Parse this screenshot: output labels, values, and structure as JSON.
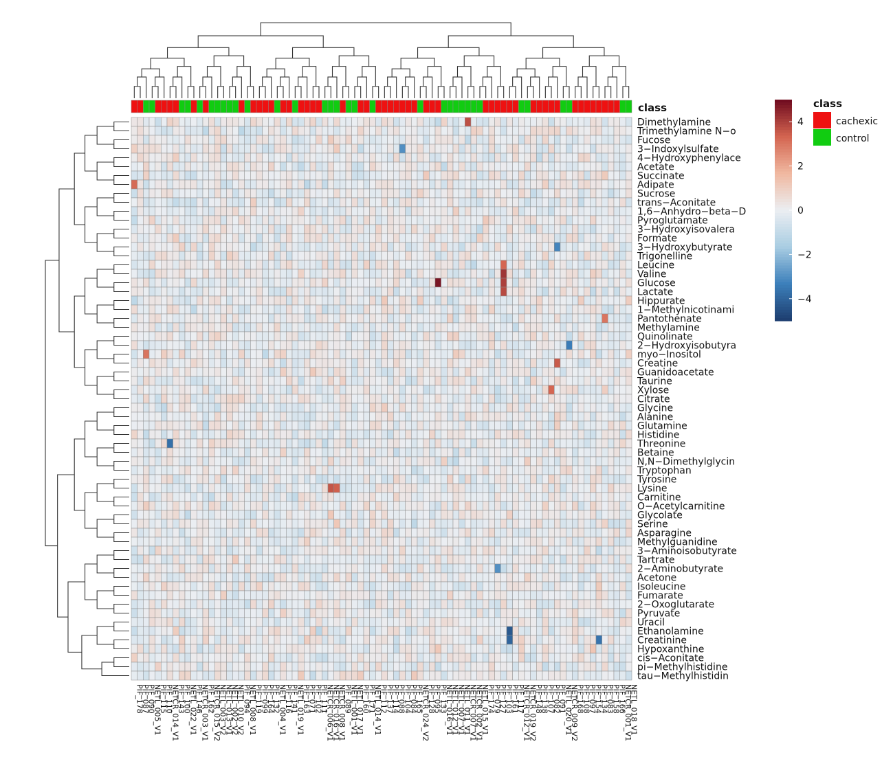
{
  "chart_data": {
    "type": "heatmap",
    "title": "",
    "xlabel": "",
    "ylabel": "",
    "annotation_title": "class",
    "annotation_legend": [
      {
        "label": "cachexic",
        "color": "#ee1111"
      },
      {
        "label": "control",
        "color": "#11cc11"
      }
    ],
    "column_class": [
      "cachexic",
      "cachexic",
      "control",
      "control",
      "cachexic",
      "cachexic",
      "cachexic",
      "cachexic",
      "control",
      "control",
      "cachexic",
      "control",
      "cachexic",
      "control",
      "control",
      "control",
      "control",
      "control",
      "cachexic",
      "control",
      "cachexic",
      "cachexic",
      "cachexic",
      "cachexic",
      "control",
      "cachexic",
      "cachexic",
      "control",
      "cachexic",
      "cachexic",
      "cachexic",
      "cachexic",
      "control",
      "control",
      "control",
      "cachexic",
      "control",
      "control",
      "cachexic",
      "cachexic",
      "control",
      "cachexic",
      "cachexic",
      "cachexic",
      "cachexic",
      "cachexic",
      "cachexic",
      "cachexic",
      "control",
      "cachexic",
      "cachexic",
      "cachexic",
      "control",
      "control",
      "control",
      "control",
      "control",
      "control",
      "control",
      "cachexic",
      "cachexic",
      "cachexic",
      "cachexic",
      "cachexic",
      "cachexic",
      "control",
      "control",
      "cachexic",
      "cachexic",
      "cachexic",
      "cachexic",
      "cachexic",
      "control",
      "control",
      "cachexic",
      "cachexic",
      "cachexic",
      "cachexic",
      "cachexic",
      "cachexic",
      "cachexic",
      "cachexic",
      "control",
      "control"
    ],
    "color_scale": {
      "min": -5,
      "max": 5,
      "ticks": [
        4,
        2,
        0,
        -2,
        -4
      ],
      "colors": [
        "#1d3d6e",
        "#3c7fba",
        "#a9cde2",
        "#ebeef2",
        "#f0b8a0",
        "#d36450",
        "#6e0a1e"
      ]
    },
    "rows": [
      "Dimethylamine",
      "Trimethylamine N−o",
      "Fucose",
      "3−Indoxylsulfate",
      "4−Hydroxyphenylace",
      "Acetate",
      "Succinate",
      "Adipate",
      "Sucrose",
      "trans−Aconitate",
      "1,6−Anhydro−beta−D",
      "Pyroglutamate",
      "3−Hydroxyisovalera",
      "Formate",
      "3−Hydroxybutyrate",
      "Trigonelline",
      "Leucine",
      "Valine",
      "Glucose",
      "Lactate",
      "Hippurate",
      "1−Methylnicotinami",
      "Pantothenate",
      "Methylamine",
      "Quinolinate",
      "2−Hydroxyisobutyra",
      "myo−Inositol",
      "Creatine",
      "Guanidoacetate",
      "Taurine",
      "Xylose",
      "Citrate",
      "Glycine",
      "Alanine",
      "Glutamine",
      "Histidine",
      "Threonine",
      "Betaine",
      "N,N−Dimethylglycin",
      "Tryptophan",
      "Tyrosine",
      "Lysine",
      "Carnitine",
      "O−Acetylcarnitine",
      "Glycolate",
      "Serine",
      "Asparagine",
      "Methylguanidine",
      "3−Aminoisobutyrate",
      "Tartrate",
      "2−Aminobutyrate",
      "Acetone",
      "Isoleucine",
      "Fumarate",
      "2−Oxoglutarate",
      "Pyruvate",
      "Uracil",
      "Ethanolamine",
      "Creatinine",
      "Hypoxanthine",
      "cis−Aconitate",
      "pi−Methylhistidine",
      "tau−Methylhistidin"
    ],
    "columns": [
      "PIF_178",
      "PIF_087",
      "PIF_090",
      "NETL_005_V1",
      "PIF_115",
      "PIF_110",
      "NETCR_014_V1",
      "PIF_143",
      "PIF_100",
      "NETL_022_V1",
      "PIF_146",
      "NETCR_003_V1",
      "PIF_162",
      "NETCR_015_V2",
      "NETL_003_V2",
      "NETL_013_V1",
      "NETL_002_V2",
      "NETL_010_V2",
      "PIF_094",
      "NETL_008_V1",
      "PIF_119",
      "PIF_099",
      "PIF_164",
      "PIF_132",
      "NETL_004_V1",
      "PIF_116",
      "PIF_141",
      "NETL_019_V1",
      "PIF_163",
      "PIF_071",
      "PIF_102",
      "PIF_111",
      "NETCR_006_V1",
      "NETCR_016_V1",
      "NETCR_008_V1",
      "PIF_089",
      "NETL_001_V1",
      "NETL_017_V1",
      "PIF_160",
      "PIF_171",
      "NETL_014_V1",
      "PIF_112",
      "PIF_137",
      "PIF_114",
      "PIF_088",
      "PIF_104",
      "PIF_084",
      "PIF_165",
      "NETCR_024_V2",
      "PIF_128",
      "PIF_095",
      "PIF_133",
      "NETL_016_V1",
      "NETL_012_V1",
      "NETL_007_V1",
      "NETL_011_V1",
      "NETCR_007_V1",
      "NETCR_002_V1",
      "NETL_015_V1",
      "PIF_174",
      "PIF_079",
      "PIF_127",
      "PIF_103",
      "PIF_161",
      "PIF_117",
      "NETCR_012_V1",
      "NETCR_019_V2",
      "PIF_148",
      "PIF_138",
      "PIF_107",
      "PIF_082",
      "PIF_091",
      "NETL_020_V1",
      "NETCR_009_V2",
      "PIF_168",
      "PIF_108",
      "PIF_097",
      "PIF_154",
      "PIF_134",
      "PIF_083",
      "PIF_158",
      "PIF_166",
      "NETCR_001_V1",
      "NETL_018_V1"
    ],
    "highlights": [
      {
        "row": "Glucose",
        "column": "PIF_133",
        "value": 4.8
      },
      {
        "row": "Valine",
        "column": "PIF_103",
        "value": 4.2
      },
      {
        "row": "Glucose",
        "column": "PIF_103",
        "value": 4.0
      },
      {
        "row": "Lactate",
        "column": "PIF_103",
        "value": 3.8
      },
      {
        "row": "Leucine",
        "column": "PIF_103",
        "value": 3.3
      },
      {
        "row": "Dimethylamine",
        "column": "NETCR_007_V1",
        "value": 3.7
      },
      {
        "row": "Creatine",
        "column": "PIF_091",
        "value": 3.5
      },
      {
        "row": "Lysine",
        "column": "NETCR_016_V1",
        "value": 3.6
      },
      {
        "row": "Lysine",
        "column": "NETCR_008_V1",
        "value": 3.4
      },
      {
        "row": "Adipate",
        "column": "PIF_178",
        "value": 3.2
      },
      {
        "row": "Xylose",
        "column": "PIF_082",
        "value": 3.3
      },
      {
        "row": "Pantothenate",
        "column": "PIF_083",
        "value": 3.0
      },
      {
        "row": "myo−Inositol",
        "column": "PIF_090",
        "value": 3.0
      },
      {
        "row": "Ethanolamine",
        "column": "PIF_161",
        "value": -4.3
      },
      {
        "row": "Creatinine",
        "column": "PIF_161",
        "value": -4.0
      },
      {
        "row": "Creatinine",
        "column": "PIF_134",
        "value": -3.6
      },
      {
        "row": "Threonine",
        "column": "NETCR_014_V1",
        "value": -3.7
      },
      {
        "row": "2−Hydroxyisobutyra",
        "column": "NETCR_009_V2",
        "value": -3.4
      },
      {
        "row": "3−Hydroxybutyrate",
        "column": "PIF_091",
        "value": -3.2
      },
      {
        "row": "2−Aminobutyrate",
        "column": "PIF_127",
        "value": -3.0
      },
      {
        "row": "3−Indoxylsulfate",
        "column": "PIF_104",
        "value": -3.0
      }
    ]
  }
}
